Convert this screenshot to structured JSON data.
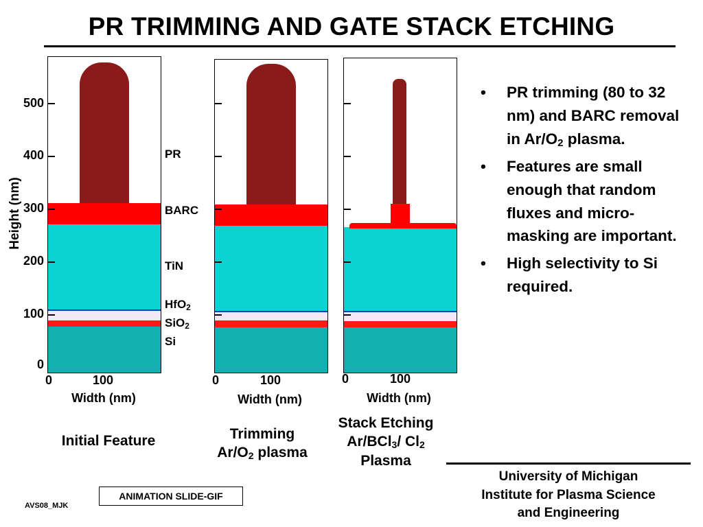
{
  "title": "PR TRIMMING AND GATE STACK ETCHING",
  "axes": {
    "y_label": "Height (nm)",
    "x_label": "Width (nm)",
    "y_ticks": [
      "500",
      "400",
      "300",
      "200",
      "100",
      "0"
    ],
    "x_ticks": [
      "0",
      "100"
    ]
  },
  "layers": {
    "pr": "PR",
    "barc": "BARC",
    "tin": "TiN",
    "hfo2_main": "HfO",
    "hfo2_sub": "2",
    "sio2_main": "SiO",
    "sio2_sub": "2",
    "si": "Si"
  },
  "captions": {
    "initial": "Initial Feature",
    "trim_line1": "Trimming",
    "trim_line2_pre": "Ar/O",
    "trim_line2_sub": "2",
    "trim_line2_post": " plasma",
    "etch_line1": "Stack Etching",
    "etch_line2_a": "Ar/BCl",
    "etch_line2_sub1": "3",
    "etch_line2_b": "/ Cl",
    "etch_line2_sub2": "2",
    "etch_line3": "Plasma"
  },
  "bullets": {
    "b1_pre": "PR trimming (80 to 32 nm) and BARC removal in Ar/O",
    "b1_sub": "2",
    "b1_post": " plasma.",
    "b2": "Features are small enough that random fluxes and micro-masking are important.",
    "b3": "High selectivity to Si required."
  },
  "footer": {
    "ack_line1": "University of Michigan",
    "ack_line2": "Institute for Plasma Science",
    "ack_line3": "and Engineering",
    "animation": "ANIMATION SLIDE-GIF",
    "tag": "AVS08_MJK"
  },
  "colors": {
    "pr": "#8b1a1a",
    "barc": "#ff0000",
    "tin": "#0cd2d2",
    "hfo2": "#f4e8f8",
    "sio2": "#ff1a1a",
    "si": "#12b0b0",
    "bullet_marker": "•"
  }
}
